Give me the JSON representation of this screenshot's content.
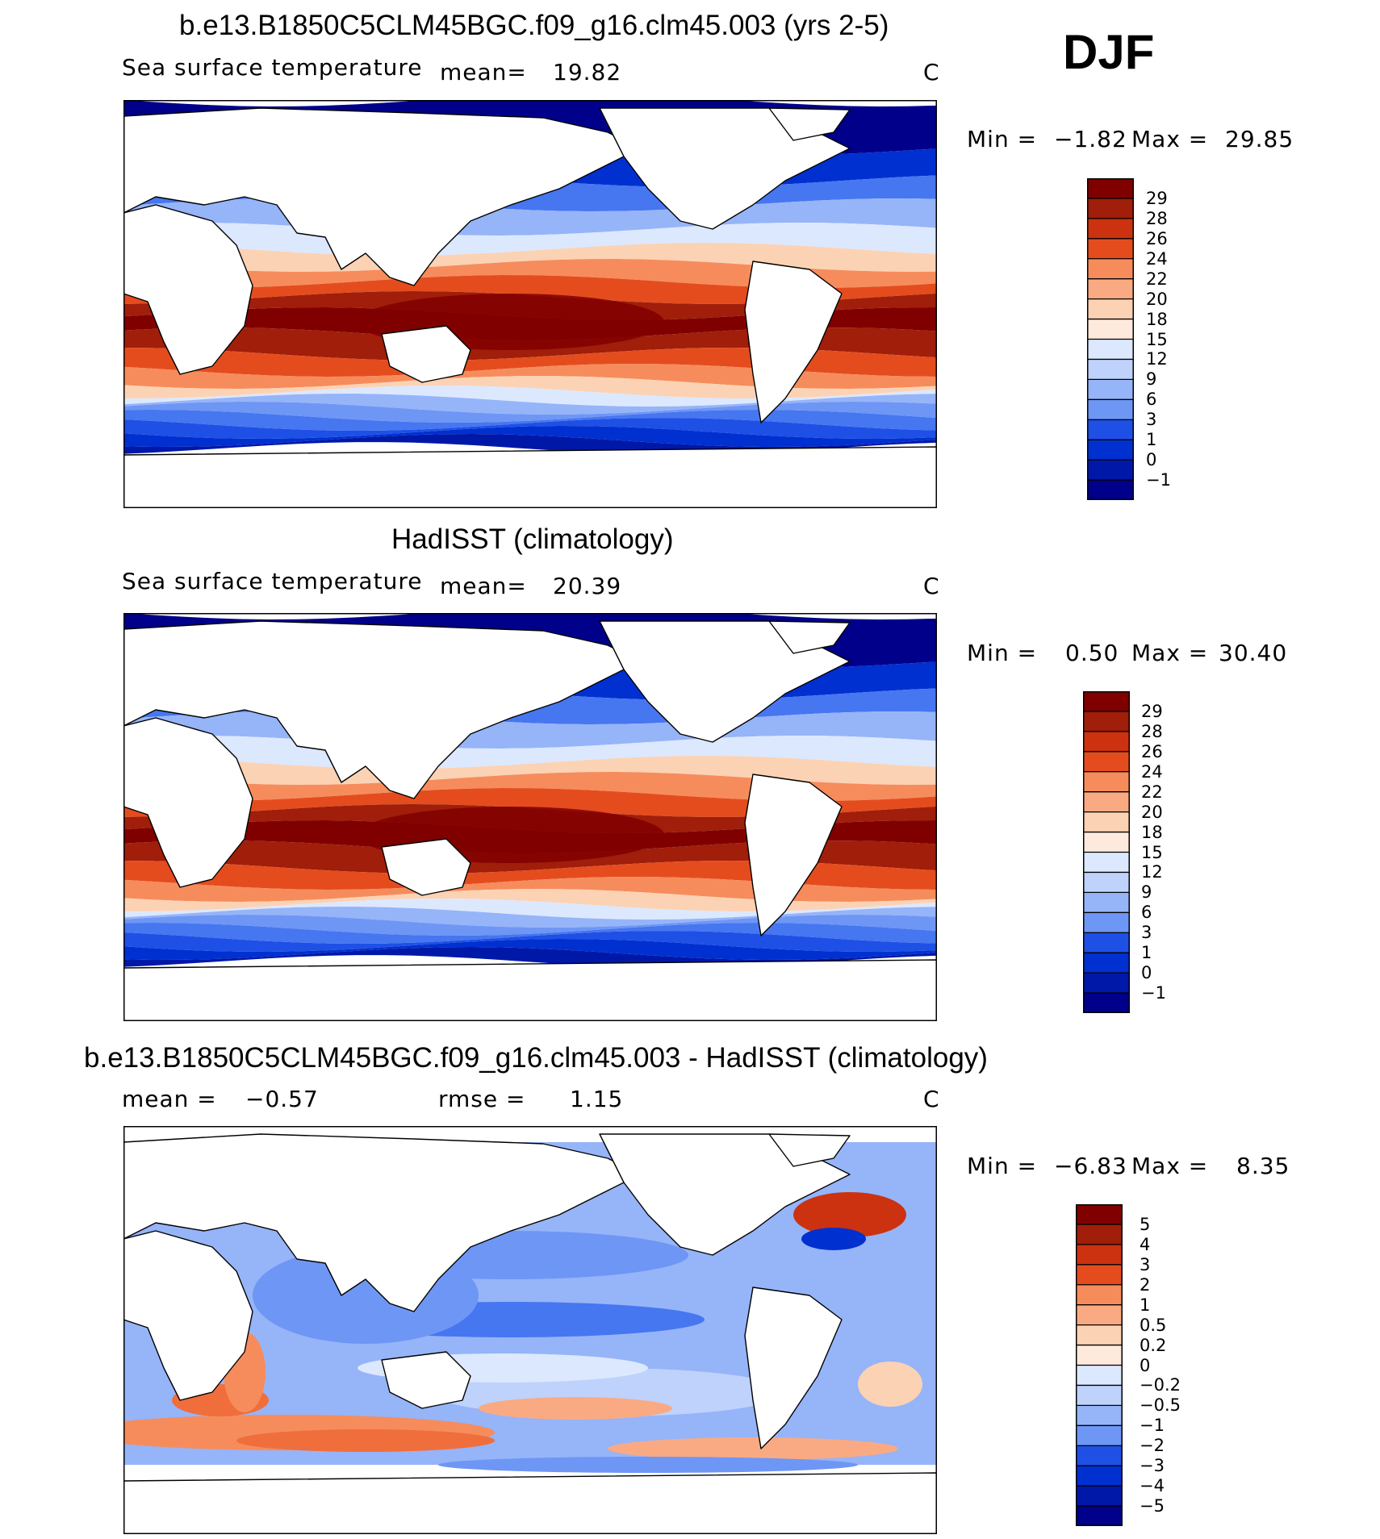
{
  "season": "DJF",
  "unit": "C",
  "icons": [
    "land-mask",
    "coastline",
    "colorbar"
  ],
  "palette_sst": [
    "#00008b",
    "#0018a8",
    "#0030d0",
    "#1e50e6",
    "#4676f0",
    "#6e96f5",
    "#96b4f8",
    "#bed2fc",
    "#dce8fd",
    "#fdeadc",
    "#fcd2b4",
    "#faaa82",
    "#f68c5c",
    "#f06e3c",
    "#e44c1e",
    "#cc3210",
    "#a01e0a",
    "#800000"
  ],
  "palette_diff": [
    "#00008b",
    "#0018a8",
    "#0030d0",
    "#1e50e6",
    "#4676f0",
    "#6e96f5",
    "#96b4f8",
    "#bed2fc",
    "#dce8fd",
    "#fdeadc",
    "#fcd2b4",
    "#faaa82",
    "#f68c5c",
    "#f06e3c",
    "#e44c1e",
    "#cc3210",
    "#a01e0a",
    "#800000"
  ],
  "panels": [
    {
      "title": "b.e13.B1850C5CLM45BGC.f09_g16.clm45.003 (yrs 2-5)",
      "variable": "Sea surface temperature",
      "stat1_label": "mean=",
      "stat1_value": "19.82",
      "stat2_label": "",
      "stat2_value": "",
      "unit": "C",
      "min_label": "Min =",
      "min_value": "−1.82",
      "max_label": "Max =",
      "max_value": "29.85",
      "colorbar_labels": [
        "29",
        "28",
        "26",
        "24",
        "22",
        "20",
        "18",
        "15",
        "12",
        "9",
        "6",
        "3",
        "1",
        "0",
        "−1"
      ]
    },
    {
      "title": "HadISST (climatology)",
      "variable": "Sea surface temperature",
      "stat1_label": "mean=",
      "stat1_value": "20.39",
      "stat2_label": "",
      "stat2_value": "",
      "unit": "C",
      "min_label": "Min =",
      "min_value": "0.50",
      "max_label": "Max =",
      "max_value": "30.40",
      "colorbar_labels": [
        "29",
        "28",
        "26",
        "24",
        "22",
        "20",
        "18",
        "15",
        "12",
        "9",
        "6",
        "3",
        "1",
        "0",
        "−1"
      ]
    },
    {
      "title": "b.e13.B1850C5CLM45BGC.f09_g16.clm45.003 - HadISST (climatology)",
      "variable": "",
      "stat1_label": "mean =",
      "stat1_value": "−0.57",
      "stat2_label": "rmse =",
      "stat2_value": "1.15",
      "unit": "C",
      "min_label": "Min =",
      "min_value": "−6.83",
      "max_label": "Max =",
      "max_value": "8.35",
      "colorbar_labels": [
        "5",
        "4",
        "3",
        "2",
        "1",
        "0.5",
        "0.2",
        "0",
        "−0.2",
        "−0.5",
        "−1",
        "−2",
        "−3",
        "−4",
        "−5"
      ]
    }
  ]
}
